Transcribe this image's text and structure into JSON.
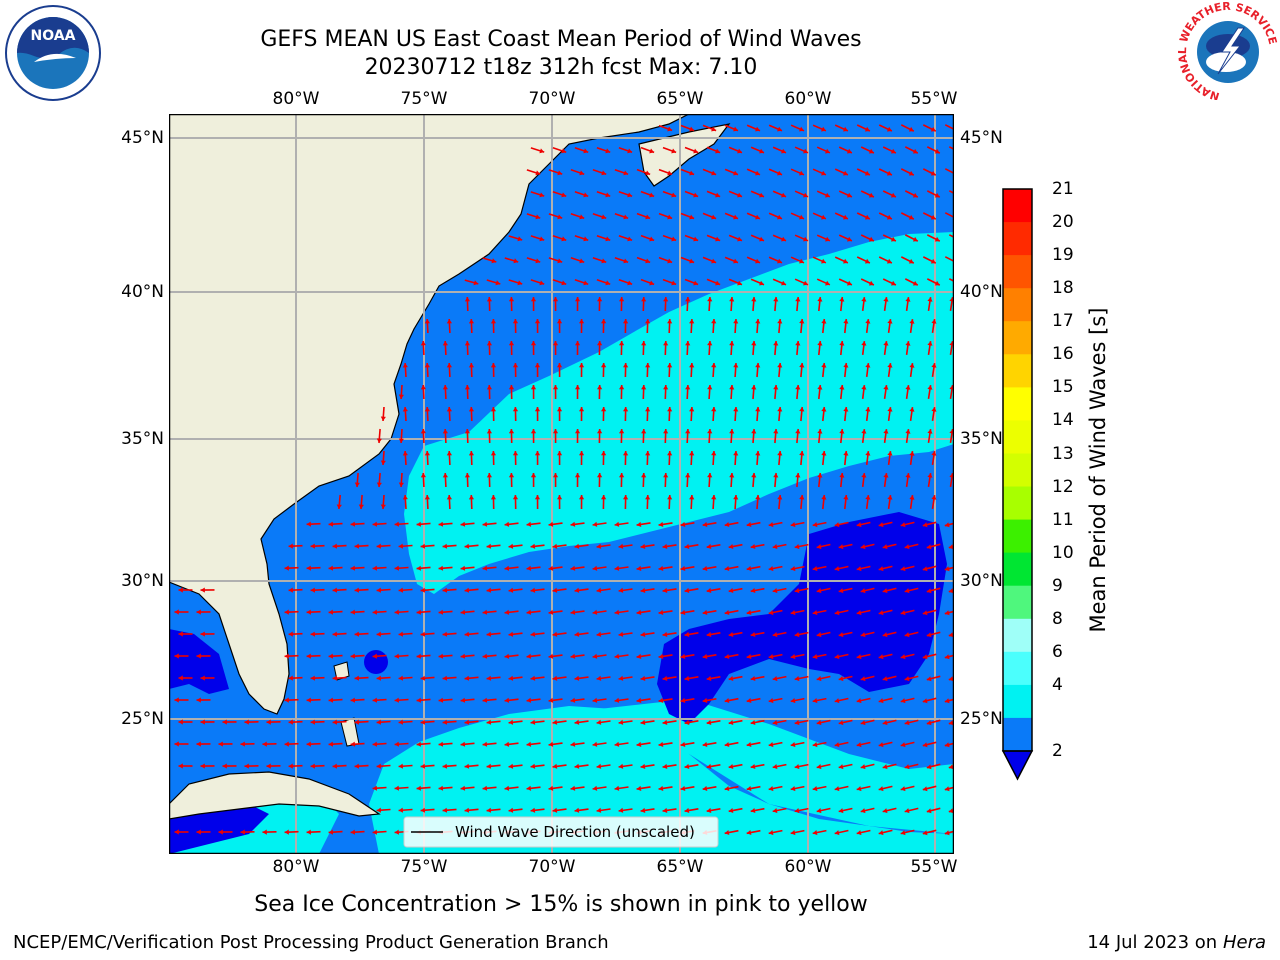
{
  "map": {
    "title_line1": "GEFS MEAN US East Coast Mean Period of Wind Waves",
    "title_line2": "20230712 t18z 312h fcst   Max: 7.10",
    "lon_ticks": [
      "80°W",
      "75°W",
      "70°W",
      "65°W",
      "60°W",
      "55°W"
    ],
    "lat_ticks": [
      "45°N",
      "40°N",
      "35°N",
      "30°N",
      "25°N"
    ],
    "legend_label": "Wind Wave Direction (unscaled)",
    "note": "Sea Ice Concentration > 15% is shown in pink to yellow",
    "colors": {
      "land": "#efefdc",
      "ocean_2_4": "#0a7af8",
      "ocean_4_6": "#00f2f2",
      "ocean_under_2": "#0000ea",
      "arrow": "#ee0000",
      "grid": "#b0b0b0"
    }
  },
  "colorbar": {
    "label": "Mean Period of Wind Waves [s]",
    "ticks": [
      "21",
      "20",
      "19",
      "18",
      "17",
      "16",
      "15",
      "14",
      "13",
      "12",
      "11",
      "10",
      "9",
      "8",
      "6",
      "4",
      "2"
    ],
    "colors": [
      "#ff0000",
      "#ff2a00",
      "#ff5500",
      "#ff8000",
      "#ffaa00",
      "#ffd400",
      "#ffff00",
      "#ecff00",
      "#d3ff00",
      "#a8ff00",
      "#3cf000",
      "#00e632",
      "#4ff77d",
      "#9ffff8",
      "#4bfffd",
      "#00f2f2",
      "#0a7af8"
    ],
    "extend_color": "#0000ea"
  },
  "logos": {
    "noaa_text": "NOAA",
    "nws_ring_text": "NATIONAL WEATHER SERVICE"
  },
  "footer": {
    "left": "NCEP/EMC/Verification Post Processing Product Generation Branch",
    "right_date": "14 Jul 2023 on ",
    "right_host": "Hera"
  }
}
